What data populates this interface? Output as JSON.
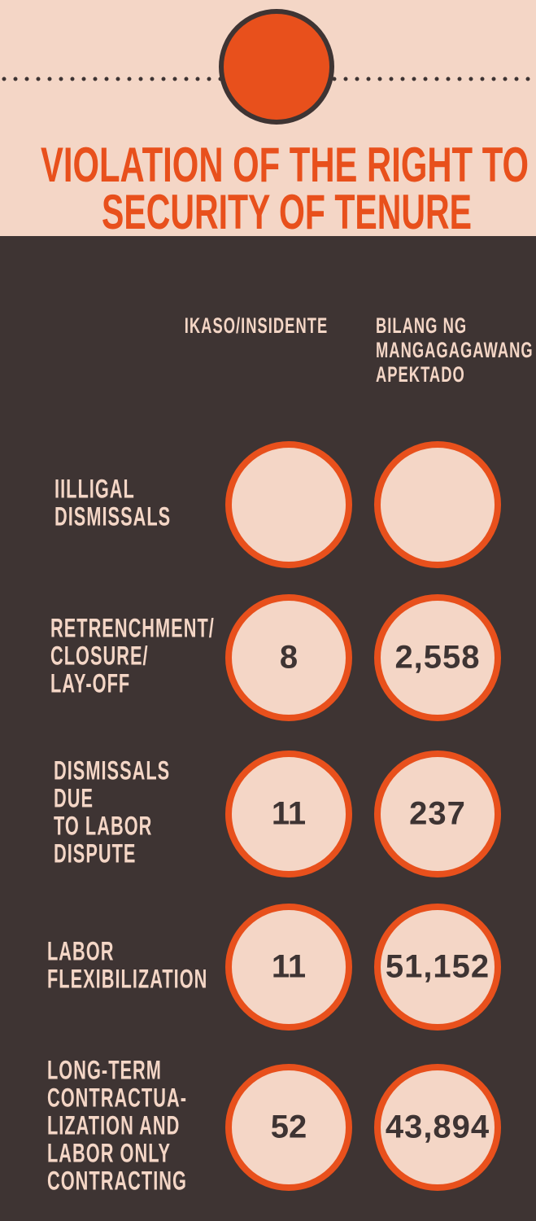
{
  "header": {
    "title_lines": [
      "VIOLATION OF THE RIGHT TO",
      "SECURITY OF TENURE"
    ]
  },
  "columns": {
    "incidents": [
      "IKASO/INSIDENTE"
    ],
    "workers": [
      "BILANG NG",
      "MANGAGAGAWANG",
      "APEKTADO"
    ]
  },
  "rows": [
    {
      "label": [
        "IILLIGAL",
        "DISMISSALS"
      ]
    },
    {
      "label": [
        "RETRENCHMENT/",
        "CLOSURE/",
        "LAY-OFF"
      ],
      "incidents": "8",
      "workers": "2,558"
    },
    {
      "label": [
        "DISMISSALS",
        "DUE",
        "TO LABOR",
        "DISPUTE"
      ],
      "incidents": "11",
      "workers": "237"
    },
    {
      "label": [
        "LABOR",
        "FLEXIBILIZATION"
      ],
      "incidents": "11",
      "workers": "51,152"
    },
    {
      "label": [
        "LONG-TERM",
        "CONTRACTUA-",
        "LIZATION AND",
        "LABOR ONLY",
        "CONTRACTING"
      ],
      "incidents": "52",
      "workers": "43,894"
    }
  ]
}
